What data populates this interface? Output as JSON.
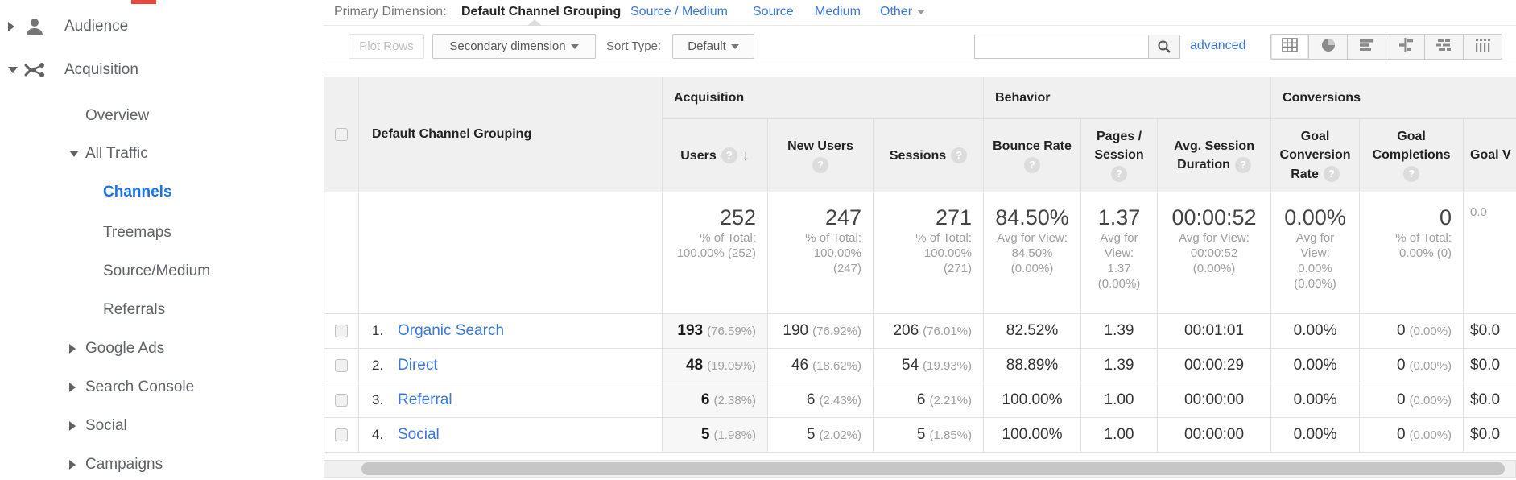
{
  "colors": {
    "accent": "#1a73e8",
    "link_blue": "#3c78d8",
    "selected_row_bg": "#e8f0fe",
    "header_bg": "#f0f0f0"
  },
  "sidebar": {
    "items": [
      {
        "label": "Audience",
        "level": 1,
        "arrow": "right",
        "icon": "person-icon",
        "state": "normal"
      },
      {
        "label": "Acquisition",
        "level": 1,
        "arrow": "down",
        "icon": "acquisition-icon",
        "state": "highlighted"
      },
      {
        "label": "Overview",
        "level": 2,
        "arrow": "none",
        "icon": "",
        "state": "normal"
      },
      {
        "label": "All Traffic",
        "level": 2,
        "arrow": "down",
        "icon": "",
        "state": "highlighted"
      },
      {
        "label": "Channels",
        "level": 3,
        "arrow": "none",
        "icon": "",
        "state": "selected"
      },
      {
        "label": "Treemaps",
        "level": 3,
        "arrow": "none",
        "icon": "",
        "state": "normal"
      },
      {
        "label": "Source/Medium",
        "level": 3,
        "arrow": "none",
        "icon": "",
        "state": "normal"
      },
      {
        "label": "Referrals",
        "level": 3,
        "arrow": "none",
        "icon": "",
        "state": "normal"
      },
      {
        "label": "Google Ads",
        "level": 2,
        "arrow": "right",
        "icon": "",
        "state": "normal"
      },
      {
        "label": "Search Console",
        "level": 2,
        "arrow": "right",
        "icon": "",
        "state": "normal"
      },
      {
        "label": "Social",
        "level": 2,
        "arrow": "right",
        "icon": "",
        "state": "normal"
      },
      {
        "label": "Campaigns",
        "level": 2,
        "arrow": "right",
        "icon": "",
        "state": "normal"
      }
    ]
  },
  "primary_dimension": {
    "label": "Primary Dimension:",
    "selected": "Default Channel Grouping",
    "links": [
      "Source / Medium",
      "Source",
      "Medium"
    ],
    "other": "Other"
  },
  "toolbar": {
    "plot_rows": "Plot Rows",
    "secondary_dimension": "Secondary dimension",
    "sort_type_label": "Sort Type:",
    "sort_type_value": "Default",
    "search_value": "",
    "advanced": "advanced",
    "view_icons": [
      "table-view-icon",
      "percentage-view-icon",
      "performance-view-icon",
      "comparison-view-icon",
      "term-cloud-view-icon",
      "pivot-view-icon"
    ],
    "active_view": 0
  },
  "table": {
    "dimension_header": "Default Channel Grouping",
    "groups": [
      {
        "label": "Acquisition",
        "span": 3
      },
      {
        "label": "Behavior",
        "span": 3
      },
      {
        "label": "Conversions",
        "span": 3
      }
    ],
    "columns": [
      {
        "lines": [
          "Users"
        ],
        "help": "inline",
        "sort": true,
        "align": "right"
      },
      {
        "lines": [
          "New Users"
        ],
        "help": "below",
        "align": "right"
      },
      {
        "lines": [
          "Sessions"
        ],
        "help": "inline",
        "align": "right"
      },
      {
        "lines": [
          "Bounce Rate"
        ],
        "help": "below",
        "align": "center"
      },
      {
        "lines": [
          "Pages /",
          "Session"
        ],
        "help": "below",
        "align": "center"
      },
      {
        "lines": [
          "Avg. Session",
          "Duration"
        ],
        "help": "inline",
        "align": "center"
      },
      {
        "lines": [
          "Goal",
          "Conversion",
          "Rate"
        ],
        "help": "inline",
        "align": "center"
      },
      {
        "lines": [
          "Goal",
          "Completions"
        ],
        "help": "below",
        "align": "right"
      },
      {
        "lines": [
          "Goal V"
        ],
        "help": "none",
        "align": "left"
      }
    ],
    "summary": [
      {
        "big": "252",
        "sub": [
          "% of Total:",
          "100.00% (252)"
        ]
      },
      {
        "big": "247",
        "sub": [
          "% of Total:",
          "100.00%",
          "(247)"
        ]
      },
      {
        "big": "271",
        "sub": [
          "% of Total:",
          "100.00%",
          "(271)"
        ]
      },
      {
        "big": "84.50%",
        "sub": [
          "Avg for View:",
          "84.50%",
          "(0.00%)"
        ]
      },
      {
        "big": "1.37",
        "sub": [
          "Avg for",
          "View:",
          "1.37",
          "(0.00%)"
        ]
      },
      {
        "big": "00:00:52",
        "sub": [
          "Avg for View:",
          "00:00:52",
          "(0.00%)"
        ]
      },
      {
        "big": "0.00%",
        "sub": [
          "Avg for",
          "View:",
          "0.00%",
          "(0.00%)"
        ]
      },
      {
        "big": "0",
        "sub": [
          "% of Total:",
          "0.00% (0)"
        ]
      },
      {
        "big": "",
        "sub": [
          "",
          "",
          "0.0"
        ]
      }
    ],
    "rows": [
      {
        "index": "1.",
        "channel": "Organic Search",
        "metrics": [
          {
            "v": "193",
            "p": "(76.59%)"
          },
          {
            "v": "190",
            "p": "(76.92%)"
          },
          {
            "v": "206",
            "p": "(76.01%)"
          },
          {
            "v": "82.52%"
          },
          {
            "v": "1.39"
          },
          {
            "v": "00:01:01"
          },
          {
            "v": "0.00%"
          },
          {
            "v": "0",
            "p": "(0.00%)"
          },
          {
            "v": "$0.0"
          }
        ]
      },
      {
        "index": "2.",
        "channel": "Direct",
        "metrics": [
          {
            "v": "48",
            "p": "(19.05%)"
          },
          {
            "v": "46",
            "p": "(18.62%)"
          },
          {
            "v": "54",
            "p": "(19.93%)"
          },
          {
            "v": "88.89%"
          },
          {
            "v": "1.39"
          },
          {
            "v": "00:00:29"
          },
          {
            "v": "0.00%"
          },
          {
            "v": "0",
            "p": "(0.00%)"
          },
          {
            "v": "$0.0"
          }
        ]
      },
      {
        "index": "3.",
        "channel": "Referral",
        "metrics": [
          {
            "v": "6",
            "p": "(2.38%)"
          },
          {
            "v": "6",
            "p": "(2.43%)"
          },
          {
            "v": "6",
            "p": "(2.21%)"
          },
          {
            "v": "100.00%"
          },
          {
            "v": "1.00"
          },
          {
            "v": "00:00:00"
          },
          {
            "v": "0.00%"
          },
          {
            "v": "0",
            "p": "(0.00%)"
          },
          {
            "v": "$0.0"
          }
        ]
      },
      {
        "index": "4.",
        "channel": "Social",
        "metrics": [
          {
            "v": "5",
            "p": "(1.98%)"
          },
          {
            "v": "5",
            "p": "(2.02%)"
          },
          {
            "v": "5",
            "p": "(1.85%)"
          },
          {
            "v": "100.00%"
          },
          {
            "v": "1.00"
          },
          {
            "v": "00:00:00"
          },
          {
            "v": "0.00%"
          },
          {
            "v": "0",
            "p": "(0.00%)"
          },
          {
            "v": "$0.0"
          }
        ]
      }
    ]
  }
}
